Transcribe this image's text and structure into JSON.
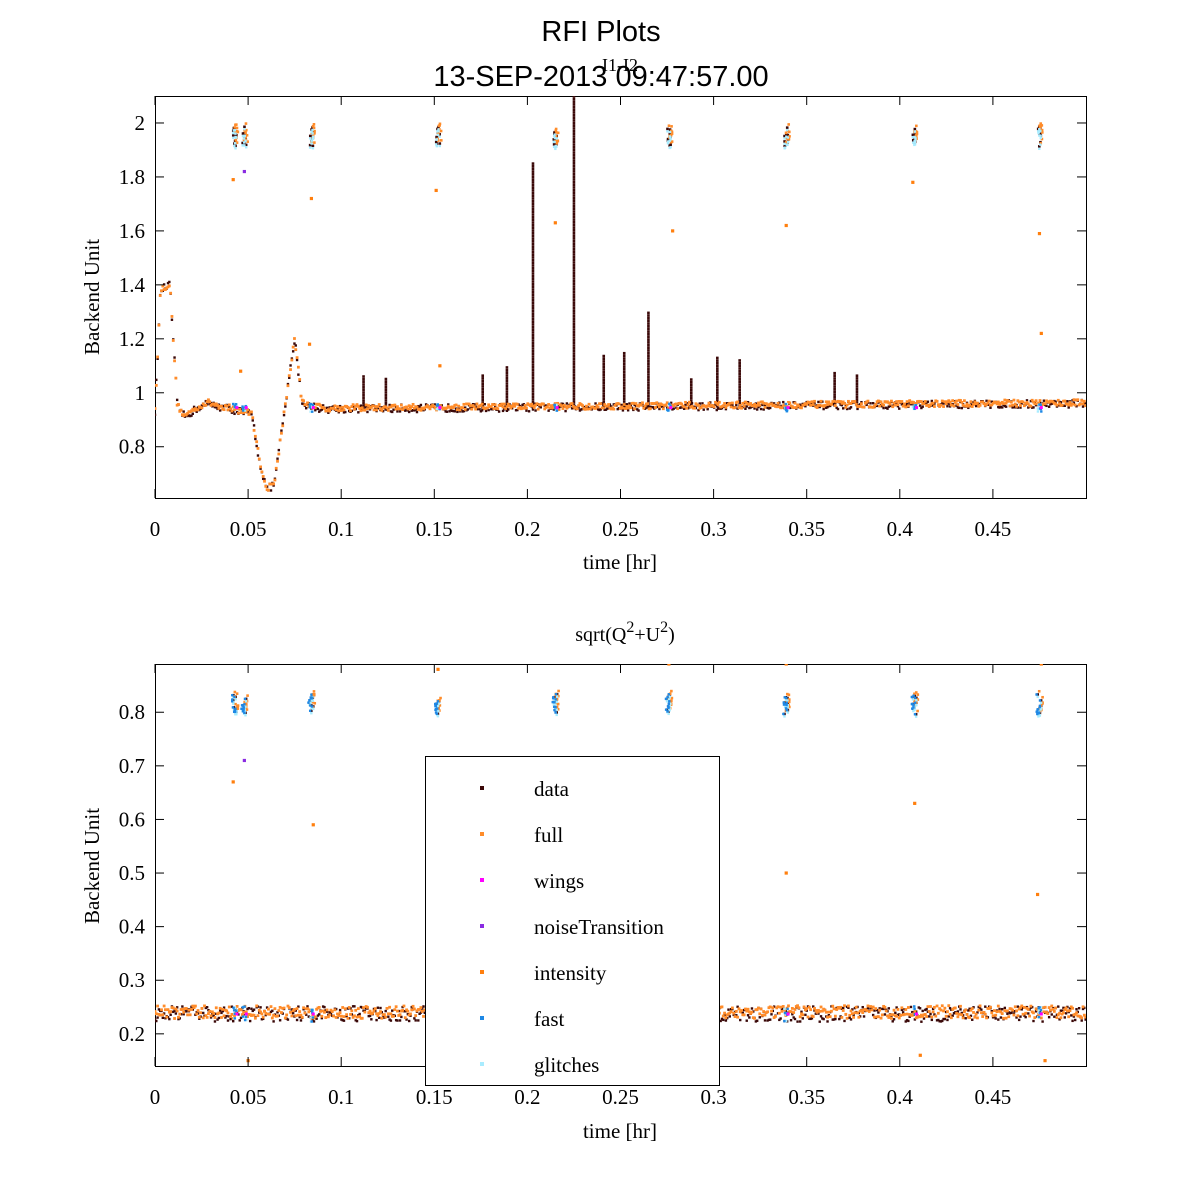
{
  "figure": {
    "title": "RFI Plots",
    "subtitle": "13-SEP-2013 09:47:57.00"
  },
  "colors": {
    "data": "#3a0808",
    "full": "#ff8c2a",
    "wings": "#ff00ff",
    "noiseTransition": "#8a2be2",
    "intensity": "#ff7f0e",
    "fast": "#1e88e5",
    "glitches": "#a9ecff"
  },
  "legend": {
    "items": [
      {
        "key": "data",
        "label": "data"
      },
      {
        "key": "full",
        "label": "full"
      },
      {
        "key": "wings",
        "label": "wings"
      },
      {
        "key": "noiseTransition",
        "label": "noiseTransition"
      },
      {
        "key": "intensity",
        "label": "intensity"
      },
      {
        "key": "fast",
        "label": "fast"
      },
      {
        "key": "glitches",
        "label": "glitches"
      }
    ]
  },
  "chart_data": [
    {
      "type": "scatter",
      "title": "I1-I2",
      "xlabel": "time [hr]",
      "ylabel": "Backend Unit",
      "xlim": [
        0,
        0.5
      ],
      "ylim": [
        0.61,
        2.1
      ],
      "xticks": [
        "0",
        "0.05",
        "0.1",
        "0.15",
        "0.2",
        "0.25",
        "0.3",
        "0.35",
        "0.4",
        "0.45"
      ],
      "xtick_values": [
        0,
        0.05,
        0.1,
        0.15,
        0.2,
        0.25,
        0.3,
        0.35,
        0.4,
        0.45
      ],
      "yticks": [
        "0.8",
        "1",
        "1.2",
        "1.4",
        "1.6",
        "1.8",
        "2"
      ],
      "ytick_values": [
        0.8,
        1.0,
        1.2,
        1.4,
        1.6,
        1.8,
        2.0
      ],
      "baseline": 0.945,
      "noise_events_x": [
        0.043,
        0.084,
        0.152,
        0.215,
        0.276,
        0.339,
        0.408,
        0.475
      ],
      "noise_on_level": 1.95,
      "trace_points": [
        [
          0,
          0.93
        ],
        [
          0.003,
          1.38
        ],
        [
          0.008,
          1.4
        ],
        [
          0.012,
          0.95
        ],
        [
          0.016,
          0.91
        ],
        [
          0.022,
          0.94
        ],
        [
          0.028,
          0.96
        ],
        [
          0.04,
          0.94
        ],
        [
          0.052,
          0.92
        ],
        [
          0.056,
          0.75
        ],
        [
          0.06,
          0.64
        ],
        [
          0.064,
          0.66
        ],
        [
          0.07,
          0.95
        ],
        [
          0.075,
          1.2
        ],
        [
          0.079,
          0.96
        ],
        [
          0.09,
          0.94
        ],
        [
          0.5,
          0.96
        ]
      ],
      "spikes": [
        [
          0.112,
          1.07
        ],
        [
          0.124,
          1.06
        ],
        [
          0.176,
          1.07
        ],
        [
          0.189,
          1.1
        ],
        [
          0.203,
          1.85
        ],
        [
          0.225,
          2.1
        ],
        [
          0.241,
          1.14
        ],
        [
          0.252,
          1.15
        ],
        [
          0.265,
          1.3
        ],
        [
          0.288,
          1.05
        ],
        [
          0.302,
          1.13
        ],
        [
          0.314,
          1.12
        ],
        [
          0.365,
          1.08
        ],
        [
          0.377,
          1.07
        ]
      ],
      "full_outliers": [
        [
          0.042,
          1.79
        ],
        [
          0.046,
          1.08
        ],
        [
          0.084,
          1.72
        ],
        [
          0.083,
          1.18
        ],
        [
          0.151,
          1.75
        ],
        [
          0.153,
          1.1
        ],
        [
          0.215,
          1.63
        ],
        [
          0.278,
          1.6
        ],
        [
          0.339,
          1.62
        ],
        [
          0.407,
          1.78
        ],
        [
          0.475,
          1.59
        ],
        [
          0.476,
          1.22
        ]
      ],
      "noise_transition_points": [
        [
          0.048,
          1.82
        ]
      ]
    },
    {
      "type": "scatter",
      "title": "sqrt(Q²+U²)",
      "xlabel": "time [hr]",
      "ylabel": "Backend Unit",
      "xlim": [
        0,
        0.5
      ],
      "ylim": [
        0.14,
        0.89
      ],
      "xticks": [
        "0",
        "0.05",
        "0.1",
        "0.15",
        "0.2",
        "0.25",
        "0.3",
        "0.35",
        "0.4",
        "0.45"
      ],
      "xtick_values": [
        0,
        0.05,
        0.1,
        0.15,
        0.2,
        0.25,
        0.3,
        0.35,
        0.4,
        0.45
      ],
      "yticks": [
        "0.2",
        "0.3",
        "0.4",
        "0.5",
        "0.6",
        "0.7",
        "0.8"
      ],
      "ytick_values": [
        0.2,
        0.3,
        0.4,
        0.5,
        0.6,
        0.7,
        0.8
      ],
      "baseline": 0.237,
      "noise_events_x": [
        0.043,
        0.084,
        0.152,
        0.215,
        0.276,
        0.339,
        0.408,
        0.475
      ],
      "noise_on_level": 0.815,
      "full_outliers": [
        [
          0.042,
          0.67
        ],
        [
          0.085,
          0.59
        ],
        [
          0.339,
          0.5
        ],
        [
          0.408,
          0.63
        ],
        [
          0.474,
          0.46
        ],
        [
          0.152,
          0.88
        ],
        [
          0.276,
          0.89
        ],
        [
          0.339,
          0.89
        ],
        [
          0.476,
          0.89
        ],
        [
          0.05,
          0.15
        ],
        [
          0.411,
          0.16
        ],
        [
          0.478,
          0.15
        ]
      ],
      "noise_transition_points": [
        [
          0.048,
          0.71
        ]
      ]
    }
  ]
}
